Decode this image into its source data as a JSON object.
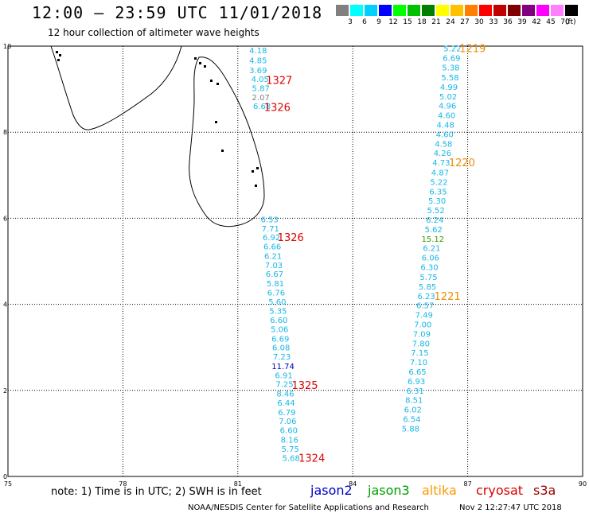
{
  "header": {
    "title": "12:00 – 23:59 UTC 11/01/2018",
    "subtitle": "12 hour collection of altimeter wave heights"
  },
  "scale": {
    "unit": "(ft)",
    "swatches": [
      {
        "color": "#808080",
        "label": "3"
      },
      {
        "color": "#00ffff",
        "label": "6"
      },
      {
        "color": "#00d0ff",
        "label": "9"
      },
      {
        "color": "#0000ff",
        "label": "12"
      },
      {
        "color": "#00ff00",
        "label": "15"
      },
      {
        "color": "#00c000",
        "label": "18"
      },
      {
        "color": "#008000",
        "label": "21"
      },
      {
        "color": "#ffff00",
        "label": "24"
      },
      {
        "color": "#ffc000",
        "label": "27"
      },
      {
        "color": "#ff8000",
        "label": "30"
      },
      {
        "color": "#ff0000",
        "label": "33"
      },
      {
        "color": "#c00000",
        "label": "36"
      },
      {
        "color": "#800000",
        "label": "39"
      },
      {
        "color": "#800080",
        "label": "42"
      },
      {
        "color": "#ff00ff",
        "label": "45"
      },
      {
        "color": "#ff80ff",
        "label": "70"
      },
      {
        "color": "#000000",
        "label": ""
      }
    ]
  },
  "map_axes": {
    "lon_labels": [
      "75",
      "78",
      "81",
      "84",
      "87",
      "90"
    ],
    "lat_labels": [
      "0",
      "2",
      "4",
      "6",
      "8",
      "10"
    ],
    "lon_range": [
      75,
      90
    ],
    "lat_range": [
      0,
      10
    ]
  },
  "colors": {
    "cyan_text": "#17b7e6",
    "dark_blue": "#0000b4",
    "green_text": "#3c9a00",
    "grey_text": "#808080",
    "red_label": "#e00000",
    "orange_label": "#f08c00"
  },
  "tracks": [
    {
      "name": "track-west-north",
      "points": [
        {
          "lon": 81.53,
          "lat": 9.91,
          "v": "4.18",
          "c": "cyan"
        },
        {
          "lon": 81.53,
          "lat": 9.68,
          "v": "4.85",
          "c": "cyan"
        },
        {
          "lon": 81.53,
          "lat": 9.45,
          "v": "3.69",
          "c": "cyan"
        },
        {
          "lon": 81.58,
          "lat": 9.24,
          "v": "4.05",
          "c": "cyan"
        },
        {
          "lon": 81.6,
          "lat": 9.03,
          "v": "5.87",
          "c": "cyan"
        },
        {
          "lon": 81.6,
          "lat": 8.82,
          "v": "2.07",
          "c": "grey"
        },
        {
          "lon": 81.63,
          "lat": 8.61,
          "v": "6.68",
          "c": "cyan"
        }
      ],
      "labels": [
        {
          "lon": 82.08,
          "lat": 9.21,
          "text": "1327",
          "c": "red"
        },
        {
          "lon": 82.03,
          "lat": 8.59,
          "text": "1326",
          "c": "red"
        }
      ]
    },
    {
      "name": "track-west-south",
      "points": [
        {
          "lon": 81.83,
          "lat": 5.98,
          "v": "6.53",
          "c": "cyan"
        },
        {
          "lon": 81.85,
          "lat": 5.77,
          "v": "7.71",
          "c": "cyan"
        },
        {
          "lon": 81.88,
          "lat": 5.56,
          "v": "6.92",
          "c": "cyan"
        },
        {
          "lon": 81.9,
          "lat": 5.35,
          "v": "6.66",
          "c": "cyan"
        },
        {
          "lon": 81.92,
          "lat": 5.13,
          "v": "6.21",
          "c": "cyan"
        },
        {
          "lon": 81.94,
          "lat": 4.92,
          "v": "7.03",
          "c": "cyan"
        },
        {
          "lon": 81.96,
          "lat": 4.71,
          "v": "6.67",
          "c": "cyan"
        },
        {
          "lon": 81.98,
          "lat": 4.49,
          "v": "5.81",
          "c": "cyan"
        },
        {
          "lon": 82.0,
          "lat": 4.28,
          "v": "6.76",
          "c": "cyan"
        },
        {
          "lon": 82.03,
          "lat": 4.07,
          "v": "5.60",
          "c": "cyan"
        },
        {
          "lon": 82.05,
          "lat": 3.85,
          "v": "5.35",
          "c": "cyan"
        },
        {
          "lon": 82.07,
          "lat": 3.64,
          "v": "6.60",
          "c": "cyan"
        },
        {
          "lon": 82.09,
          "lat": 3.43,
          "v": "5.06",
          "c": "cyan"
        },
        {
          "lon": 82.11,
          "lat": 3.21,
          "v": "6.69",
          "c": "cyan"
        },
        {
          "lon": 82.13,
          "lat": 3.0,
          "v": "6.08",
          "c": "cyan"
        },
        {
          "lon": 82.15,
          "lat": 2.79,
          "v": "7.23",
          "c": "cyan"
        },
        {
          "lon": 82.18,
          "lat": 2.57,
          "v": "11.74",
          "c": "blue"
        },
        {
          "lon": 82.2,
          "lat": 2.36,
          "v": "6.91",
          "c": "cyan"
        },
        {
          "lon": 82.22,
          "lat": 2.15,
          "v": "7.25",
          "c": "cyan"
        },
        {
          "lon": 82.24,
          "lat": 1.93,
          "v": "8.46",
          "c": "cyan"
        },
        {
          "lon": 82.26,
          "lat": 1.72,
          "v": "6.44",
          "c": "cyan"
        },
        {
          "lon": 82.28,
          "lat": 1.5,
          "v": "6.79",
          "c": "cyan"
        },
        {
          "lon": 82.3,
          "lat": 1.29,
          "v": "7.06",
          "c": "cyan"
        },
        {
          "lon": 82.33,
          "lat": 1.08,
          "v": "6.60",
          "c": "cyan"
        },
        {
          "lon": 82.35,
          "lat": 0.86,
          "v": "8.16",
          "c": "cyan"
        },
        {
          "lon": 82.37,
          "lat": 0.65,
          "v": "5.75",
          "c": "cyan"
        },
        {
          "lon": 82.39,
          "lat": 0.43,
          "v": "5.68",
          "c": "cyan"
        }
      ],
      "labels": [
        {
          "lon": 82.38,
          "lat": 5.56,
          "text": "1326",
          "c": "red"
        },
        {
          "lon": 82.75,
          "lat": 2.13,
          "text": "1325",
          "c": "red"
        },
        {
          "lon": 82.93,
          "lat": 0.43,
          "text": "1324",
          "c": "red"
        }
      ]
    },
    {
      "name": "track-east",
      "points": [
        {
          "lon": 86.6,
          "lat": 9.95,
          "v": "5.22",
          "c": "cyan"
        },
        {
          "lon": 86.58,
          "lat": 9.73,
          "v": "6.69",
          "c": "cyan"
        },
        {
          "lon": 86.56,
          "lat": 9.51,
          "v": "5.38",
          "c": "cyan"
        },
        {
          "lon": 86.54,
          "lat": 9.28,
          "v": "5.58",
          "c": "cyan"
        },
        {
          "lon": 86.51,
          "lat": 9.06,
          "v": "4.99",
          "c": "cyan"
        },
        {
          "lon": 86.49,
          "lat": 8.84,
          "v": "5.02",
          "c": "cyan"
        },
        {
          "lon": 86.47,
          "lat": 8.62,
          "v": "4.96",
          "c": "cyan"
        },
        {
          "lon": 86.45,
          "lat": 8.4,
          "v": "4.60",
          "c": "cyan"
        },
        {
          "lon": 86.42,
          "lat": 8.18,
          "v": "4.48",
          "c": "cyan"
        },
        {
          "lon": 86.4,
          "lat": 7.96,
          "v": "4.60",
          "c": "cyan"
        },
        {
          "lon": 86.37,
          "lat": 7.74,
          "v": "4.58",
          "c": "cyan"
        },
        {
          "lon": 86.34,
          "lat": 7.52,
          "v": "4.26",
          "c": "cyan"
        },
        {
          "lon": 86.31,
          "lat": 7.3,
          "v": "4.73",
          "c": "cyan"
        },
        {
          "lon": 86.28,
          "lat": 7.07,
          "v": "4.87",
          "c": "cyan"
        },
        {
          "lon": 86.25,
          "lat": 6.85,
          "v": "5.22",
          "c": "cyan"
        },
        {
          "lon": 86.23,
          "lat": 6.63,
          "v": "6.35",
          "c": "cyan"
        },
        {
          "lon": 86.2,
          "lat": 6.41,
          "v": "5.30",
          "c": "cyan"
        },
        {
          "lon": 86.17,
          "lat": 6.19,
          "v": "5.52",
          "c": "cyan"
        },
        {
          "lon": 86.14,
          "lat": 5.97,
          "v": "6.24",
          "c": "cyan"
        },
        {
          "lon": 86.11,
          "lat": 5.75,
          "v": "5.62",
          "c": "cyan"
        },
        {
          "lon": 86.09,
          "lat": 5.53,
          "v": "15.12",
          "c": "green"
        },
        {
          "lon": 86.06,
          "lat": 5.31,
          "v": "6.21",
          "c": "cyan"
        },
        {
          "lon": 86.03,
          "lat": 5.09,
          "v": "6.06",
          "c": "cyan"
        },
        {
          "lon": 86.0,
          "lat": 4.87,
          "v": "6.30",
          "c": "cyan"
        },
        {
          "lon": 85.98,
          "lat": 4.64,
          "v": "5.75",
          "c": "cyan"
        },
        {
          "lon": 85.95,
          "lat": 4.42,
          "v": "5.85",
          "c": "cyan"
        },
        {
          "lon": 85.92,
          "lat": 4.2,
          "v": "6.23",
          "c": "cyan"
        },
        {
          "lon": 85.89,
          "lat": 3.98,
          "v": "6.57",
          "c": "cyan"
        },
        {
          "lon": 85.86,
          "lat": 3.76,
          "v": "7.49",
          "c": "cyan"
        },
        {
          "lon": 85.83,
          "lat": 3.54,
          "v": "7.00",
          "c": "cyan"
        },
        {
          "lon": 85.8,
          "lat": 3.32,
          "v": "7.09",
          "c": "cyan"
        },
        {
          "lon": 85.78,
          "lat": 3.1,
          "v": "7.80",
          "c": "cyan"
        },
        {
          "lon": 85.75,
          "lat": 2.88,
          "v": "7.15",
          "c": "cyan"
        },
        {
          "lon": 85.72,
          "lat": 2.66,
          "v": "7.10",
          "c": "cyan"
        },
        {
          "lon": 85.69,
          "lat": 2.44,
          "v": "6.65",
          "c": "cyan"
        },
        {
          "lon": 85.66,
          "lat": 2.22,
          "v": "6.93",
          "c": "cyan"
        },
        {
          "lon": 85.63,
          "lat": 2.0,
          "v": "6.31",
          "c": "cyan"
        },
        {
          "lon": 85.6,
          "lat": 1.78,
          "v": "8.51",
          "c": "cyan"
        },
        {
          "lon": 85.57,
          "lat": 1.56,
          "v": "6.02",
          "c": "cyan"
        },
        {
          "lon": 85.54,
          "lat": 1.34,
          "v": "6.54",
          "c": "cyan"
        },
        {
          "lon": 85.51,
          "lat": 1.12,
          "v": "5.88",
          "c": "cyan"
        }
      ],
      "labels": [
        {
          "lon": 87.13,
          "lat": 9.95,
          "text": "1219",
          "c": "orange"
        },
        {
          "lon": 86.85,
          "lat": 7.3,
          "text": "1220",
          "c": "orange"
        },
        {
          "lon": 86.47,
          "lat": 4.2,
          "text": "1221",
          "c": "orange"
        }
      ]
    }
  ],
  "footer": {
    "note": "note:  1) Time is in UTC;  2) SWH is in feet",
    "satellites": [
      {
        "name": "jason2",
        "color": "#0000cc"
      },
      {
        "name": "jason3",
        "color": "#00a000"
      },
      {
        "name": "altika",
        "color": "#ff9900"
      },
      {
        "name": "cryosat",
        "color": "#dd0000"
      },
      {
        "name": "s3a",
        "color": "#990000"
      }
    ],
    "credit": "NOAA/NESDIS Center for Satellite Applications and Research",
    "timestamp": "Nov  2 12:27:47 UTC 2018"
  }
}
